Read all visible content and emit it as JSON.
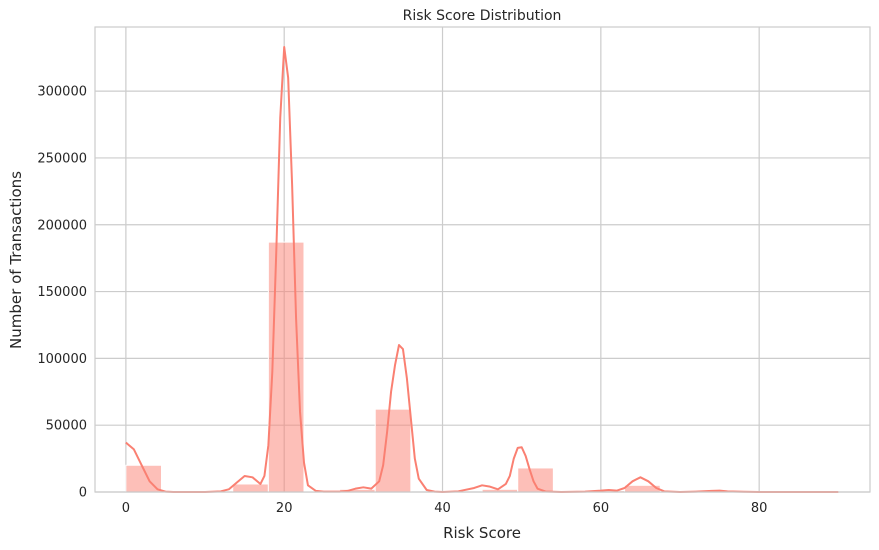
{
  "chart_data": {
    "type": "bar",
    "title": "Risk Score Distribution",
    "xlabel": "Risk Score",
    "ylabel": "Number of Transactions",
    "xlim": [
      -3.9,
      94
    ],
    "ylim": [
      0,
      348000
    ],
    "xticks": [
      0,
      20,
      40,
      60,
      80
    ],
    "yticks": [
      0,
      50000,
      100000,
      150000,
      200000,
      250000,
      300000
    ],
    "grid": true,
    "legend": "none",
    "bin_width": 4.5,
    "bars": [
      {
        "x0": 0,
        "x1": 4.5,
        "value": 20000
      },
      {
        "x0": 4.5,
        "x1": 9,
        "value": 0
      },
      {
        "x0": 9,
        "x1": 13.5,
        "value": 0
      },
      {
        "x0": 13.5,
        "x1": 18,
        "value": 6000
      },
      {
        "x0": 18,
        "x1": 22.5,
        "value": 187000
      },
      {
        "x0": 22.5,
        "x1": 27,
        "value": 500
      },
      {
        "x0": 27,
        "x1": 31.5,
        "value": 2000
      },
      {
        "x0": 31.5,
        "x1": 36,
        "value": 62000
      },
      {
        "x0": 36,
        "x1": 40.5,
        "value": 0
      },
      {
        "x0": 40.5,
        "x1": 45,
        "value": 0
      },
      {
        "x0": 45,
        "x1": 49.5,
        "value": 2000
      },
      {
        "x0": 49.5,
        "x1": 54,
        "value": 18000
      },
      {
        "x0": 54,
        "x1": 58.5,
        "value": 0
      },
      {
        "x0": 58.5,
        "x1": 63,
        "value": 1000
      },
      {
        "x0": 63,
        "x1": 67.5,
        "value": 5000
      },
      {
        "x0": 67.5,
        "x1": 72,
        "value": 0
      },
      {
        "x0": 72,
        "x1": 76.5,
        "value": 800
      },
      {
        "x0": 76.5,
        "x1": 81,
        "value": 0
      },
      {
        "x0": 81,
        "x1": 85.5,
        "value": 0
      },
      {
        "x0": 85.5,
        "x1": 90,
        "value": 300
      }
    ],
    "kde": {
      "x": [
        0,
        1,
        2,
        3,
        4,
        5,
        6,
        8,
        10,
        12,
        13,
        14,
        15,
        16,
        17,
        17.5,
        18,
        18.5,
        19,
        19.5,
        20,
        20.5,
        21,
        21.5,
        22,
        22.5,
        23,
        24,
        25,
        27,
        28,
        29,
        30,
        31,
        32,
        32.5,
        33,
        33.5,
        34,
        34.5,
        35,
        35.5,
        36,
        36.5,
        37,
        38,
        39,
        40,
        42,
        44,
        45,
        46,
        47,
        48,
        48.5,
        49,
        49.5,
        50,
        50.5,
        51,
        51.5,
        52,
        53,
        55,
        58,
        60,
        61,
        62,
        63,
        64,
        65,
        66,
        67,
        68,
        70,
        72,
        74,
        75,
        76,
        78,
        80,
        85,
        90
      ],
      "y": [
        37000,
        32000,
        20000,
        8000,
        2000,
        300,
        0,
        0,
        0,
        500,
        2000,
        7000,
        12000,
        11000,
        6000,
        12000,
        35000,
        90000,
        180000,
        280000,
        333000,
        310000,
        230000,
        130000,
        60000,
        22000,
        5000,
        800,
        300,
        300,
        800,
        2500,
        3500,
        2500,
        8000,
        20000,
        45000,
        75000,
        95000,
        110000,
        107000,
        85000,
        55000,
        25000,
        10000,
        1500,
        300,
        0,
        500,
        3000,
        5000,
        4000,
        2000,
        6000,
        12000,
        25000,
        33000,
        33500,
        27000,
        17000,
        8000,
        2500,
        400,
        0,
        300,
        1000,
        1500,
        1000,
        3000,
        8000,
        11000,
        8000,
        3000,
        500,
        0,
        300,
        800,
        1000,
        500,
        200,
        0,
        0,
        0
      ]
    },
    "colors": {
      "bar_fill": "#fb8072",
      "bar_opacity": 0.5,
      "kde_line": "#fa8072",
      "grid": "#cccccc",
      "text": "#262626"
    }
  }
}
